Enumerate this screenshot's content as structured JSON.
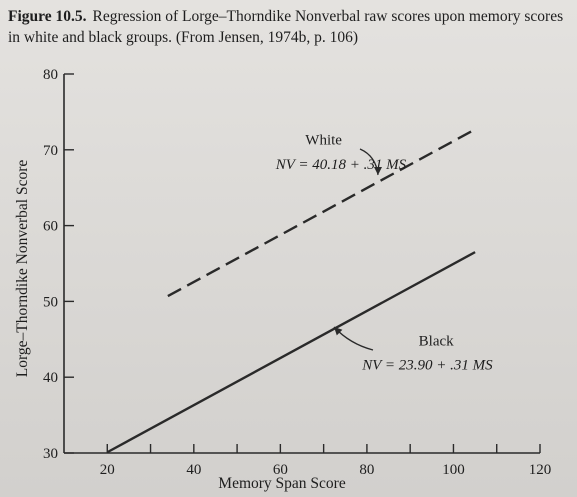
{
  "caption": {
    "figure_label": "Figure 10.5.",
    "text": "Regression of Lorge–Thorndike Nonverbal raw scores upon memory scores in white and black groups.  (From Jensen, 1974b, p. 106)"
  },
  "chart_data": {
    "type": "line",
    "title": "",
    "xlabel": "Memory Span Score",
    "ylabel": "Lorge–Thorndike Nonverbal Score",
    "xlim": [
      10,
      120
    ],
    "ylim": [
      30,
      80
    ],
    "x_ticks": [
      "20",
      "40",
      "60",
      "80",
      "100",
      "120"
    ],
    "y_ticks": [
      "30",
      "40",
      "50",
      "60",
      "70",
      "80"
    ],
    "grid": false,
    "series": [
      {
        "name": "White",
        "equation": "NV = 40.18 + .31 MS",
        "line_style": "dashed",
        "x": [
          34,
          105
        ],
        "y": [
          50.7,
          72.7
        ]
      },
      {
        "name": "Black",
        "equation": "NV = 23.90 + .31 MS",
        "line_style": "solid",
        "x": [
          20,
          105
        ],
        "y": [
          30.1,
          56.5
        ]
      }
    ]
  }
}
